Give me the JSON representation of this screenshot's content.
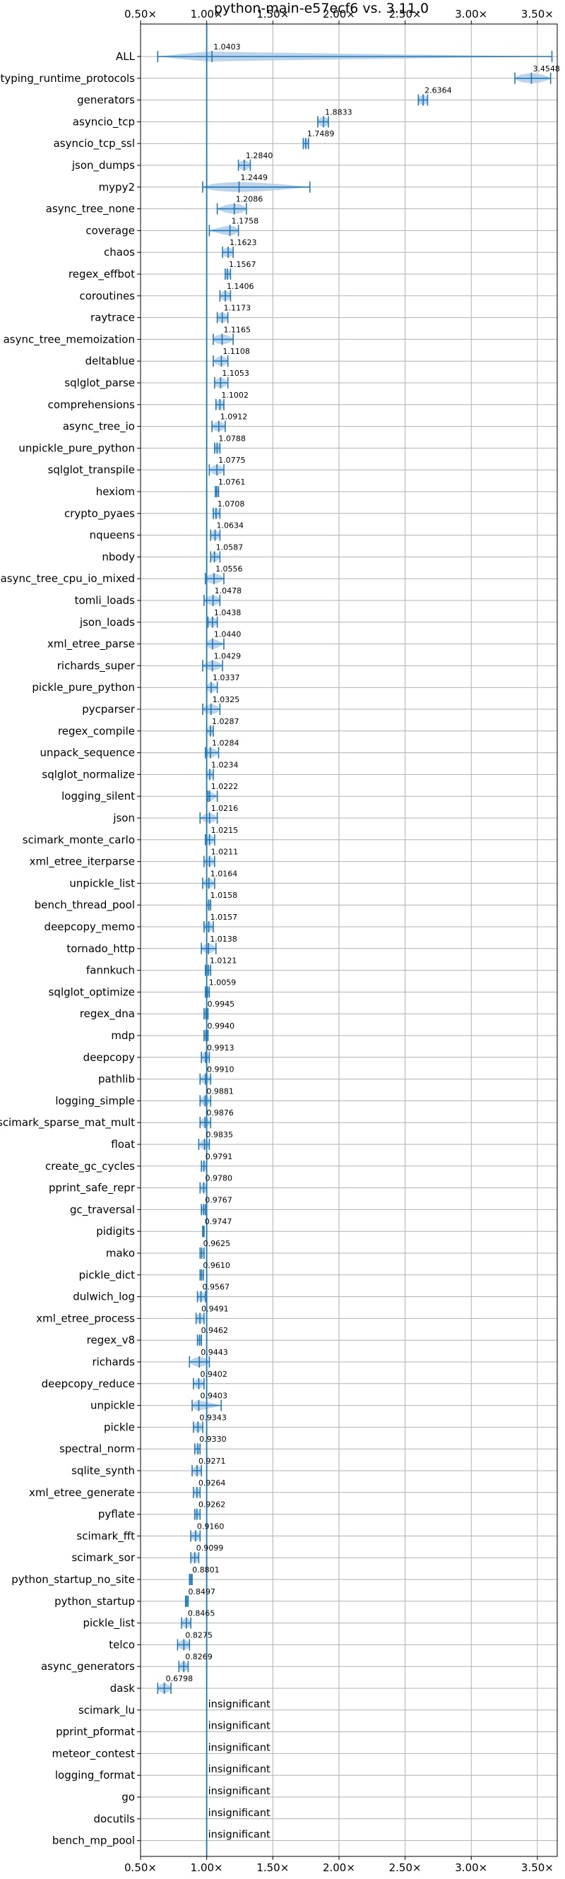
{
  "chart_data": {
    "type": "violin",
    "title": "python-main-e57ecf6 vs. 3.11.0",
    "xlim": [
      0.5,
      3.65
    ],
    "xticks": [
      0.5,
      1.0,
      1.5,
      2.0,
      2.5,
      3.0,
      3.5
    ],
    "xtick_labels": [
      "0.50×",
      "1.00×",
      "1.50×",
      "2.00×",
      "2.50×",
      "3.00×",
      "3.50×"
    ],
    "reference_line": 1.0,
    "grid": true,
    "colors": {
      "line": "#1f77b4",
      "violin": "#aac9e6",
      "grid": "#b0b0b0"
    },
    "benchmarks": [
      {
        "name": "ALL",
        "label": "1.0403",
        "mean": 1.0403,
        "min": 0.63,
        "max": 3.61,
        "spread": 0.12
      },
      {
        "name": "typing_runtime_protocols",
        "label": "3.4548",
        "mean": 3.4548,
        "min": 3.33,
        "max": 3.6,
        "spread": 0.1
      },
      {
        "name": "generators",
        "label": "2.6364",
        "mean": 2.6364,
        "min": 2.6,
        "max": 2.67,
        "spread": 0.04
      },
      {
        "name": "asyncio_tcp",
        "label": "1.8833",
        "mean": 1.8833,
        "min": 1.84,
        "max": 1.92,
        "spread": 0.04
      },
      {
        "name": "asyncio_tcp_ssl",
        "label": "1.7489",
        "mean": 1.7489,
        "min": 1.73,
        "max": 1.77,
        "spread": 0.02
      },
      {
        "name": "json_dumps",
        "label": "1.2840",
        "mean": 1.284,
        "min": 1.24,
        "max": 1.33,
        "spread": 0.04
      },
      {
        "name": "mypy2",
        "label": "1.2449",
        "mean": 1.2449,
        "min": 0.97,
        "max": 1.78,
        "spread": 0.22
      },
      {
        "name": "async_tree_none",
        "label": "1.2086",
        "mean": 1.2086,
        "min": 1.08,
        "max": 1.3,
        "spread": 0.08
      },
      {
        "name": "coverage",
        "label": "1.1758",
        "mean": 1.1758,
        "min": 1.02,
        "max": 1.24,
        "spread": 0.05
      },
      {
        "name": "chaos",
        "label": "1.1623",
        "mean": 1.1623,
        "min": 1.12,
        "max": 1.2,
        "spread": 0.04
      },
      {
        "name": "regex_effbot",
        "label": "1.1567",
        "mean": 1.1567,
        "min": 1.14,
        "max": 1.18,
        "spread": 0.02
      },
      {
        "name": "coroutines",
        "label": "1.1406",
        "mean": 1.1406,
        "min": 1.1,
        "max": 1.18,
        "spread": 0.04
      },
      {
        "name": "raytrace",
        "label": "1.1173",
        "mean": 1.1173,
        "min": 1.08,
        "max": 1.16,
        "spread": 0.04
      },
      {
        "name": "async_tree_memoization",
        "label": "1.1165",
        "mean": 1.1165,
        "min": 1.05,
        "max": 1.2,
        "spread": 0.06
      },
      {
        "name": "deltablue",
        "label": "1.1108",
        "mean": 1.1108,
        "min": 1.05,
        "max": 1.16,
        "spread": 0.04
      },
      {
        "name": "sqlglot_parse",
        "label": "1.1053",
        "mean": 1.1053,
        "min": 1.06,
        "max": 1.16,
        "spread": 0.04
      },
      {
        "name": "comprehensions",
        "label": "1.1002",
        "mean": 1.1002,
        "min": 1.07,
        "max": 1.13,
        "spread": 0.03
      },
      {
        "name": "async_tree_io",
        "label": "1.0912",
        "mean": 1.0912,
        "min": 1.04,
        "max": 1.14,
        "spread": 0.04
      },
      {
        "name": "unpickle_pure_python",
        "label": "1.0788",
        "mean": 1.0788,
        "min": 1.06,
        "max": 1.1,
        "spread": 0.02
      },
      {
        "name": "sqlglot_transpile",
        "label": "1.0775",
        "mean": 1.0775,
        "min": 1.02,
        "max": 1.13,
        "spread": 0.04
      },
      {
        "name": "hexiom",
        "label": "1.0761",
        "mean": 1.0761,
        "min": 1.065,
        "max": 1.09,
        "spread": 0.015
      },
      {
        "name": "crypto_pyaes",
        "label": "1.0708",
        "mean": 1.0708,
        "min": 1.05,
        "max": 1.1,
        "spread": 0.03
      },
      {
        "name": "nqueens",
        "label": "1.0634",
        "mean": 1.0634,
        "min": 1.03,
        "max": 1.1,
        "spread": 0.03
      },
      {
        "name": "nbody",
        "label": "1.0587",
        "mean": 1.0587,
        "min": 1.03,
        "max": 1.1,
        "spread": 0.03
      },
      {
        "name": "async_tree_cpu_io_mixed",
        "label": "1.0556",
        "mean": 1.0556,
        "min": 0.99,
        "max": 1.13,
        "spread": 0.05
      },
      {
        "name": "tomli_loads",
        "label": "1.0478",
        "mean": 1.0478,
        "min": 0.98,
        "max": 1.1,
        "spread": 0.05
      },
      {
        "name": "json_loads",
        "label": "1.0438",
        "mean": 1.0438,
        "min": 1.01,
        "max": 1.08,
        "spread": 0.03
      },
      {
        "name": "xml_etree_parse",
        "label": "1.0440",
        "mean": 1.044,
        "min": 1.0,
        "max": 1.13,
        "spread": 0.04
      },
      {
        "name": "richards_super",
        "label": "1.0429",
        "mean": 1.0429,
        "min": 0.97,
        "max": 1.12,
        "spread": 0.05
      },
      {
        "name": "pickle_pure_python",
        "label": "1.0337",
        "mean": 1.0337,
        "min": 1.0,
        "max": 1.08,
        "spread": 0.03
      },
      {
        "name": "pycparser",
        "label": "1.0325",
        "mean": 1.0325,
        "min": 0.97,
        "max": 1.1,
        "spread": 0.05
      },
      {
        "name": "regex_compile",
        "label": "1.0287",
        "mean": 1.0287,
        "min": 1.0,
        "max": 1.05,
        "spread": 0.02
      },
      {
        "name": "unpack_sequence",
        "label": "1.0284",
        "mean": 1.0284,
        "min": 0.99,
        "max": 1.09,
        "spread": 0.04
      },
      {
        "name": "sqlglot_normalize",
        "label": "1.0234",
        "mean": 1.0234,
        "min": 1.0,
        "max": 1.05,
        "spread": 0.02
      },
      {
        "name": "logging_silent",
        "label": "1.0222",
        "mean": 1.0222,
        "min": 1.01,
        "max": 1.08,
        "spread": 0.02
      },
      {
        "name": "json",
        "label": "1.0216",
        "mean": 1.0216,
        "min": 0.95,
        "max": 1.08,
        "spread": 0.04
      },
      {
        "name": "scimark_monte_carlo",
        "label": "1.0215",
        "mean": 1.0215,
        "min": 0.99,
        "max": 1.06,
        "spread": 0.03
      },
      {
        "name": "xml_etree_iterparse",
        "label": "1.0211",
        "mean": 1.0211,
        "min": 0.98,
        "max": 1.06,
        "spread": 0.03
      },
      {
        "name": "unpickle_list",
        "label": "1.0164",
        "mean": 1.0164,
        "min": 0.97,
        "max": 1.06,
        "spread": 0.03
      },
      {
        "name": "bench_thread_pool",
        "label": "1.0158",
        "mean": 1.0158,
        "min": 1.0,
        "max": 1.03,
        "spread": 0.02
      },
      {
        "name": "deepcopy_memo",
        "label": "1.0157",
        "mean": 1.0157,
        "min": 0.98,
        "max": 1.05,
        "spread": 0.03
      },
      {
        "name": "tornado_http",
        "label": "1.0138",
        "mean": 1.0138,
        "min": 0.96,
        "max": 1.07,
        "spread": 0.04
      },
      {
        "name": "fannkuch",
        "label": "1.0121",
        "mean": 1.0121,
        "min": 0.99,
        "max": 1.03,
        "spread": 0.02
      },
      {
        "name": "sqlglot_optimize",
        "label": "1.0059",
        "mean": 1.0059,
        "min": 0.99,
        "max": 1.02,
        "spread": 0.015
      },
      {
        "name": "regex_dna",
        "label": "0.9945",
        "mean": 0.9945,
        "min": 0.98,
        "max": 1.01,
        "spread": 0.015
      },
      {
        "name": "mdp",
        "label": "0.9940",
        "mean": 0.994,
        "min": 0.98,
        "max": 1.01,
        "spread": 0.015
      },
      {
        "name": "deepcopy",
        "label": "0.9913",
        "mean": 0.9913,
        "min": 0.96,
        "max": 1.02,
        "spread": 0.03
      },
      {
        "name": "pathlib",
        "label": "0.9910",
        "mean": 0.991,
        "min": 0.95,
        "max": 1.03,
        "spread": 0.03
      },
      {
        "name": "logging_simple",
        "label": "0.9881",
        "mean": 0.9881,
        "min": 0.95,
        "max": 1.03,
        "spread": 0.03
      },
      {
        "name": "scimark_sparse_mat_mult",
        "label": "0.9876",
        "mean": 0.9876,
        "min": 0.95,
        "max": 1.03,
        "spread": 0.03
      },
      {
        "name": "float",
        "label": "0.9835",
        "mean": 0.9835,
        "min": 0.94,
        "max": 1.02,
        "spread": 0.03
      },
      {
        "name": "create_gc_cycles",
        "label": "0.9791",
        "mean": 0.9791,
        "min": 0.96,
        "max": 1.0,
        "spread": 0.02
      },
      {
        "name": "pprint_safe_repr",
        "label": "0.9780",
        "mean": 0.978,
        "min": 0.95,
        "max": 1.0,
        "spread": 0.02
      },
      {
        "name": "gc_traversal",
        "label": "0.9767",
        "mean": 0.9767,
        "min": 0.96,
        "max": 0.99,
        "spread": 0.015
      },
      {
        "name": "pidigits",
        "label": "0.9747",
        "mean": 0.9747,
        "min": 0.97,
        "max": 0.98,
        "spread": 0.008
      },
      {
        "name": "mako",
        "label": "0.9625",
        "mean": 0.9625,
        "min": 0.95,
        "max": 0.98,
        "spread": 0.015
      },
      {
        "name": "pickle_dict",
        "label": "0.9610",
        "mean": 0.961,
        "min": 0.95,
        "max": 0.975,
        "spread": 0.015
      },
      {
        "name": "dulwich_log",
        "label": "0.9567",
        "mean": 0.9567,
        "min": 0.93,
        "max": 0.99,
        "spread": 0.03
      },
      {
        "name": "xml_etree_process",
        "label": "0.9491",
        "mean": 0.9491,
        "min": 0.92,
        "max": 0.98,
        "spread": 0.03
      },
      {
        "name": "regex_v8",
        "label": "0.9462",
        "mean": 0.9462,
        "min": 0.93,
        "max": 0.96,
        "spread": 0.015
      },
      {
        "name": "richards",
        "label": "0.9443",
        "mean": 0.9443,
        "min": 0.87,
        "max": 1.02,
        "spread": 0.05
      },
      {
        "name": "deepcopy_reduce",
        "label": "0.9402",
        "mean": 0.9402,
        "min": 0.9,
        "max": 0.98,
        "spread": 0.03
      },
      {
        "name": "unpickle",
        "label": "0.9403",
        "mean": 0.9403,
        "min": 0.89,
        "max": 1.11,
        "spread": 0.04
      },
      {
        "name": "pickle",
        "label": "0.9343",
        "mean": 0.9343,
        "min": 0.9,
        "max": 0.97,
        "spread": 0.03
      },
      {
        "name": "spectral_norm",
        "label": "0.9330",
        "mean": 0.933,
        "min": 0.91,
        "max": 0.95,
        "spread": 0.02
      },
      {
        "name": "sqlite_synth",
        "label": "0.9271",
        "mean": 0.9271,
        "min": 0.89,
        "max": 0.96,
        "spread": 0.03
      },
      {
        "name": "xml_etree_generate",
        "label": "0.9264",
        "mean": 0.9264,
        "min": 0.9,
        "max": 0.95,
        "spread": 0.02
      },
      {
        "name": "pyflate",
        "label": "0.9262",
        "mean": 0.9262,
        "min": 0.91,
        "max": 0.95,
        "spread": 0.02
      },
      {
        "name": "scimark_fft",
        "label": "0.9160",
        "mean": 0.916,
        "min": 0.88,
        "max": 0.95,
        "spread": 0.03
      },
      {
        "name": "scimark_sor",
        "label": "0.9099",
        "mean": 0.9099,
        "min": 0.88,
        "max": 0.94,
        "spread": 0.03
      },
      {
        "name": "python_startup_no_site",
        "label": "0.8801",
        "mean": 0.8801,
        "min": 0.87,
        "max": 0.89,
        "spread": 0.008
      },
      {
        "name": "python_startup",
        "label": "0.8497",
        "mean": 0.8497,
        "min": 0.84,
        "max": 0.86,
        "spread": 0.008
      },
      {
        "name": "pickle_list",
        "label": "0.8465",
        "mean": 0.8465,
        "min": 0.81,
        "max": 0.88,
        "spread": 0.03
      },
      {
        "name": "telco",
        "label": "0.8275",
        "mean": 0.8275,
        "min": 0.78,
        "max": 0.87,
        "spread": 0.04
      },
      {
        "name": "async_generators",
        "label": "0.8269",
        "mean": 0.8269,
        "min": 0.79,
        "max": 0.86,
        "spread": 0.03
      },
      {
        "name": "dask",
        "label": "0.6798",
        "mean": 0.6798,
        "min": 0.63,
        "max": 0.73,
        "spread": 0.04
      },
      {
        "name": "scimark_lu",
        "label": "insignificant",
        "insignificant": true
      },
      {
        "name": "pprint_pformat",
        "label": "insignificant",
        "insignificant": true
      },
      {
        "name": "meteor_contest",
        "label": "insignificant",
        "insignificant": true
      },
      {
        "name": "logging_format",
        "label": "insignificant",
        "insignificant": true
      },
      {
        "name": "go",
        "label": "insignificant",
        "insignificant": true
      },
      {
        "name": "docutils",
        "label": "insignificant",
        "insignificant": true
      },
      {
        "name": "bench_mp_pool",
        "label": "insignificant",
        "insignificant": true
      }
    ]
  }
}
